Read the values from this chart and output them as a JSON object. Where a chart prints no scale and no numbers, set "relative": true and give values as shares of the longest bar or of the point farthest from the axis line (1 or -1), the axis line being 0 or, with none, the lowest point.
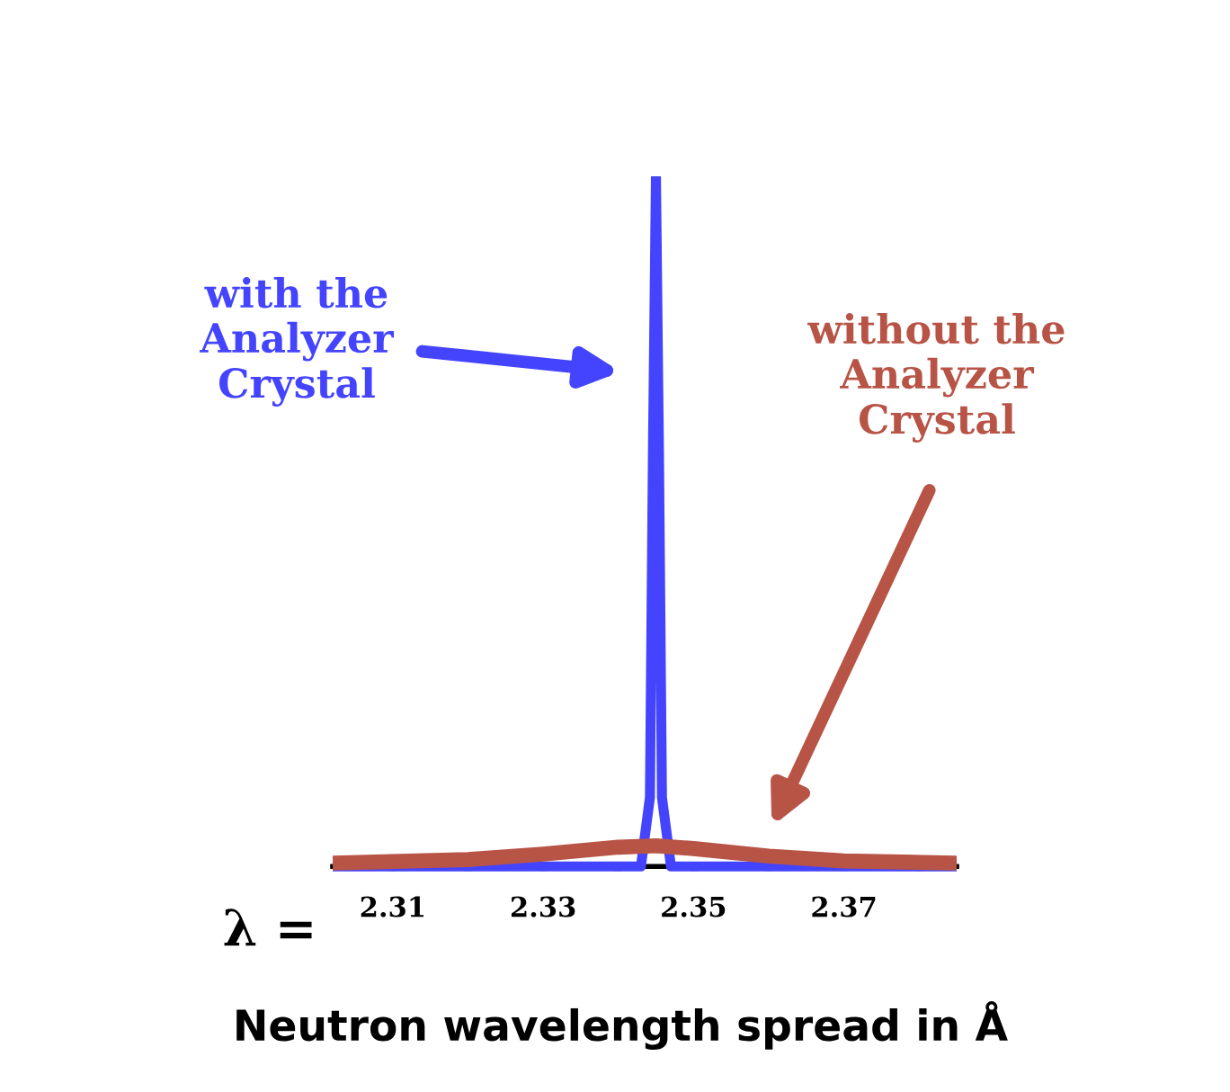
{
  "chart_data": {
    "type": "line",
    "relative": true,
    "xlabel": "Neutron wavelength spread in Å",
    "xlim": [
      2.302,
      2.385
    ],
    "xticks": [
      {
        "value": 2.31,
        "label": "2.31"
      },
      {
        "value": 2.32,
        "label": null
      },
      {
        "value": 2.33,
        "label": "2.33"
      },
      {
        "value": 2.34,
        "label": null
      },
      {
        "value": 2.35,
        "label": "2.35"
      },
      {
        "value": 2.36,
        "label": null
      },
      {
        "value": 2.37,
        "label": "2.37"
      },
      {
        "value": 2.38,
        "label": null
      }
    ],
    "series": [
      {
        "color": "#4444ff",
        "x": [
          2.302,
          2.33,
          2.343,
          2.3442,
          2.3446,
          2.345,
          2.3454,
          2.3458,
          2.347,
          2.36,
          2.385
        ],
        "values": [
          0,
          0,
          0,
          0.1,
          0.6,
          1,
          0.6,
          0.1,
          0,
          0,
          0
        ]
      },
      {
        "color": "#b85446",
        "x": [
          2.302,
          2.32,
          2.33,
          2.34,
          2.345,
          2.35,
          2.36,
          2.37,
          2.385
        ],
        "values": [
          0.005,
          0.01,
          0.018,
          0.028,
          0.03,
          0.026,
          0.015,
          0.008,
          0.005
        ]
      }
    ],
    "annotations": [
      "with the\nAnalyzer\nCrystal",
      "without the\nAnalyzer\nCrystal",
      "λ ="
    ],
    "grid": false,
    "marker": "none",
    "line_style": "solid"
  }
}
